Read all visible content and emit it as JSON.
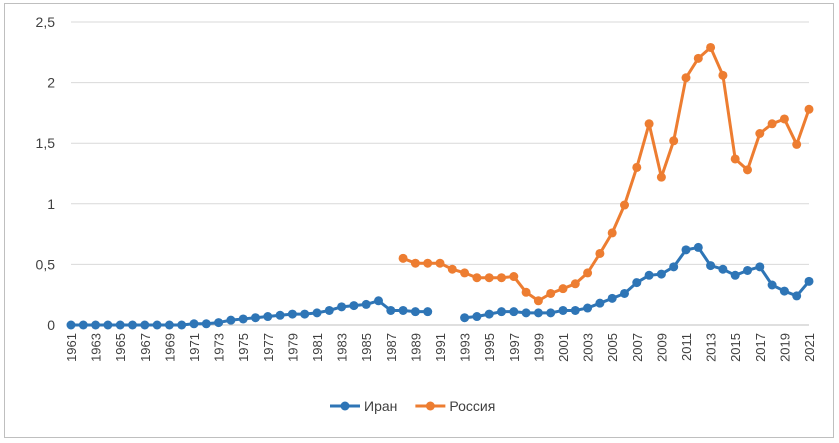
{
  "chart_data": {
    "type": "line",
    "title": "",
    "xlabel": "",
    "ylabel": "",
    "ylim": [
      0,
      2.5
    ],
    "yticks": [
      {
        "value": 0,
        "label": "0"
      },
      {
        "value": 0.5,
        "label": "0,5"
      },
      {
        "value": 1,
        "label": "1"
      },
      {
        "value": 1.5,
        "label": "1,5"
      },
      {
        "value": 2,
        "label": "2"
      },
      {
        "value": 2.5,
        "label": "2,5"
      }
    ],
    "x": [
      1961,
      1962,
      1963,
      1964,
      1965,
      1966,
      1967,
      1968,
      1969,
      1970,
      1971,
      1972,
      1973,
      1974,
      1975,
      1976,
      1977,
      1978,
      1979,
      1980,
      1981,
      1982,
      1983,
      1984,
      1985,
      1986,
      1987,
      1988,
      1989,
      1990,
      1991,
      1992,
      1993,
      1994,
      1995,
      1996,
      1997,
      1998,
      1999,
      2000,
      2001,
      2002,
      2003,
      2004,
      2005,
      2006,
      2007,
      2008,
      2009,
      2010,
      2011,
      2012,
      2013,
      2014,
      2015,
      2016,
      2017,
      2018,
      2019,
      2020,
      2021
    ],
    "xtick_labels": [
      "1961",
      "1963",
      "1965",
      "1967",
      "1969",
      "1971",
      "1973",
      "1975",
      "1977",
      "1979",
      "1981",
      "1983",
      "1985",
      "1987",
      "1989",
      "1991",
      "1993",
      "1995",
      "1997",
      "1999",
      "2001",
      "2003",
      "2005",
      "2007",
      "2009",
      "2011",
      "2013",
      "2015",
      "2017",
      "2019",
      "2021"
    ],
    "grid": "horizontal",
    "legend_position": "bottom",
    "series": [
      {
        "name": "Иран",
        "color": "#2e75b6",
        "values": [
          0,
          0,
          0,
          0,
          0,
          0,
          0,
          0,
          0,
          0,
          0.01,
          0.01,
          0.02,
          0.04,
          0.05,
          0.06,
          0.07,
          0.08,
          0.09,
          0.09,
          0.1,
          0.12,
          0.15,
          0.16,
          0.17,
          0.2,
          0.12,
          0.12,
          0.11,
          0.11,
          null,
          null,
          0.06,
          0.07,
          0.09,
          0.11,
          0.11,
          0.1,
          0.1,
          0.1,
          0.12,
          0.12,
          0.14,
          0.18,
          0.22,
          0.26,
          0.35,
          0.41,
          0.42,
          0.48,
          0.62,
          0.64,
          0.49,
          0.46,
          0.41,
          0.45,
          0.48,
          0.33,
          0.28,
          0.24,
          0.36
        ]
      },
      {
        "name": "Россия",
        "color": "#ed7d31",
        "values": [
          null,
          null,
          null,
          null,
          null,
          null,
          null,
          null,
          null,
          null,
          null,
          null,
          null,
          null,
          null,
          null,
          null,
          null,
          null,
          null,
          null,
          null,
          null,
          null,
          null,
          null,
          null,
          0.55,
          0.51,
          0.51,
          0.51,
          0.46,
          0.43,
          0.39,
          0.39,
          0.39,
          0.4,
          0.27,
          0.2,
          0.26,
          0.3,
          0.34,
          0.43,
          0.59,
          0.76,
          0.99,
          1.3,
          1.66,
          1.22,
          1.52,
          2.04,
          2.2,
          2.29,
          2.06,
          1.37,
          1.28,
          1.58,
          1.66,
          1.7,
          1.49,
          1.78
        ]
      }
    ]
  }
}
